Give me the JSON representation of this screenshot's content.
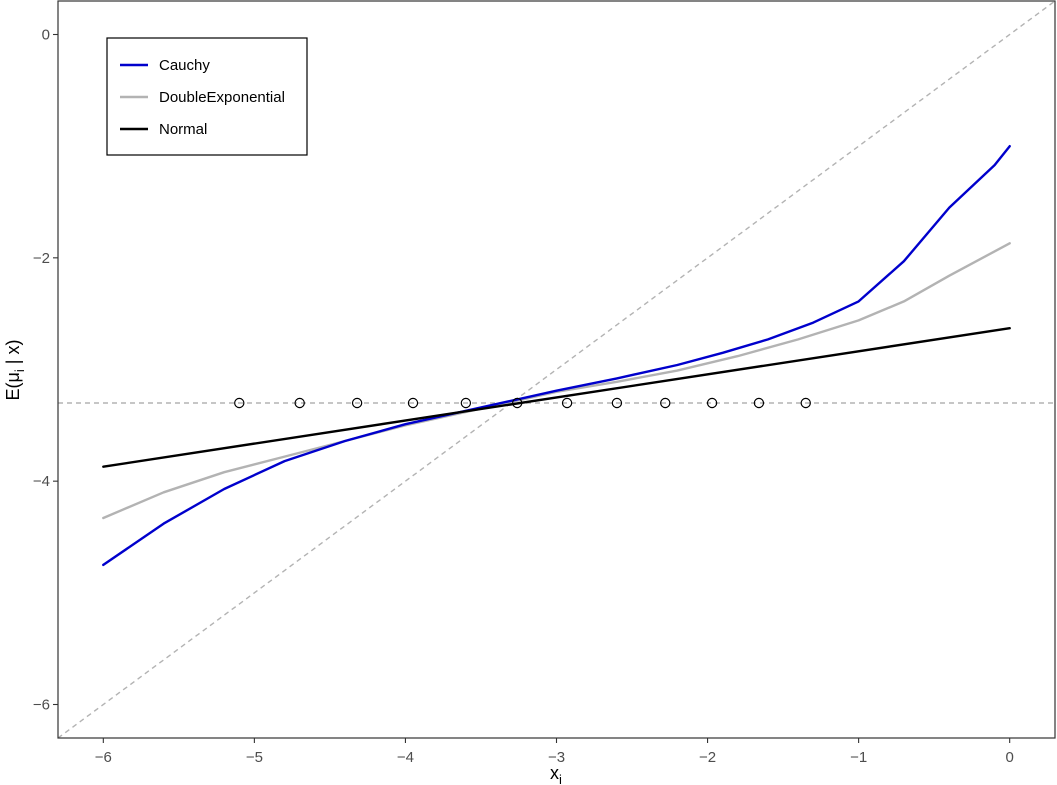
{
  "chart_data": {
    "type": "line",
    "xlabel": "x",
    "xlabel_sub": "i",
    "ylabel_prefix": "E(μ",
    "ylabel_sub": "i",
    "ylabel_suffix": " | x)",
    "xlim": [
      -6.3,
      0.3
    ],
    "ylim": [
      -6.3,
      0.3
    ],
    "x_ticks": [
      -6,
      -5,
      -4,
      -3,
      -2,
      -1,
      0
    ],
    "x_tick_labels": [
      "−6",
      "−5",
      "−4",
      "−3",
      "−2",
      "−1",
      "0"
    ],
    "y_ticks": [
      0,
      -2,
      -4,
      -6
    ],
    "y_tick_labels": [
      "0",
      "−2",
      "−4",
      "−6"
    ],
    "grid": false,
    "legend_position": "top-left",
    "series": [
      {
        "name": "Cauchy",
        "color": "#0000cc",
        "x": [
          -6.0,
          -5.6,
          -5.2,
          -4.8,
          -4.4,
          -4.0,
          -3.6,
          -3.3,
          -3.0,
          -2.6,
          -2.2,
          -1.9,
          -1.6,
          -1.3,
          -1.0,
          -0.7,
          -0.4,
          -0.1,
          0.0
        ],
        "y": [
          -4.75,
          -4.38,
          -4.07,
          -3.82,
          -3.64,
          -3.49,
          -3.37,
          -3.28,
          -3.19,
          -3.08,
          -2.96,
          -2.85,
          -2.73,
          -2.58,
          -2.39,
          -2.03,
          -1.55,
          -1.17,
          -1.0
        ]
      },
      {
        "name": "DoubleExponential",
        "color": "#b3b3b3",
        "x": [
          -6.0,
          -5.6,
          -5.2,
          -4.8,
          -4.4,
          -4.0,
          -3.6,
          -3.3,
          -3.0,
          -2.6,
          -2.2,
          -1.8,
          -1.4,
          -1.0,
          -0.7,
          -0.4,
          0.0
        ],
        "y": [
          -4.33,
          -4.1,
          -3.92,
          -3.78,
          -3.64,
          -3.5,
          -3.38,
          -3.29,
          -3.2,
          -3.11,
          -3.01,
          -2.88,
          -2.73,
          -2.56,
          -2.39,
          -2.16,
          -1.87
        ]
      },
      {
        "name": "Normal",
        "color": "#000000",
        "x": [
          -6.0,
          0.0
        ],
        "y": [
          -3.87,
          -2.63
        ]
      }
    ],
    "points": {
      "x": [
        -5.1,
        -4.7,
        -4.32,
        -3.95,
        -3.6,
        -3.26,
        -2.93,
        -2.6,
        -2.28,
        -1.97,
        -1.66,
        -1.35
      ],
      "y": [
        -3.3,
        -3.3,
        -3.3,
        -3.3,
        -3.3,
        -3.3,
        -3.3,
        -3.3,
        -3.3,
        -3.3,
        -3.3,
        -3.3
      ]
    },
    "reference_lines": {
      "identity_color": "#b3b3b3",
      "hline_y": -3.3,
      "hline_color": "#b3b3b3"
    }
  }
}
